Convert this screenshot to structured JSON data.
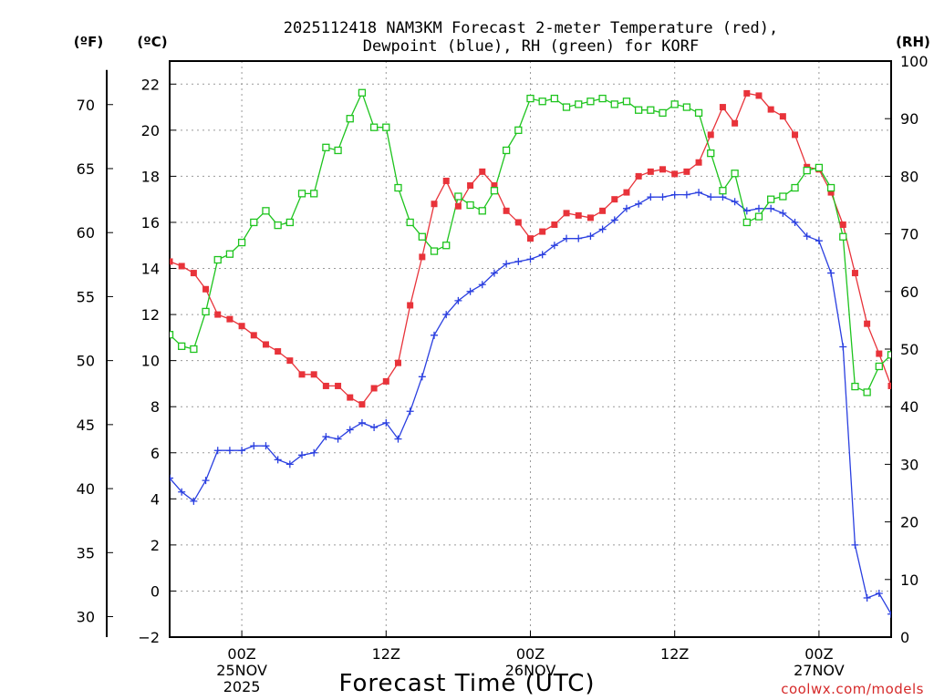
{
  "chart_data": {
    "type": "line",
    "title_lines": [
      "2025112418 NAM3KM Forecast 2-meter Temperature (red),",
      "Dewpoint (blue), RH (green) for KORF"
    ],
    "xlabel": "Forecast Time (UTC)",
    "credit": "coolwx.com/models",
    "units": {
      "left_f": "(ºF)",
      "left_c": "(ºC)",
      "right_rh": "(RH)"
    },
    "x_range_hours": [
      0,
      60
    ],
    "x_ticks": [
      {
        "hour": 6,
        "lines": [
          "00Z",
          "25NOV",
          "2025"
        ]
      },
      {
        "hour": 18,
        "lines": [
          "12Z"
        ]
      },
      {
        "hour": 30,
        "lines": [
          "00Z",
          "26NOV"
        ]
      },
      {
        "hour": 42,
        "lines": [
          "12Z"
        ]
      },
      {
        "hour": 54,
        "lines": [
          "00Z",
          "27NOV"
        ]
      }
    ],
    "y_celsius": {
      "min": -2,
      "max": 23,
      "ticks": [
        -2,
        0,
        2,
        4,
        6,
        8,
        10,
        12,
        14,
        16,
        18,
        20,
        22
      ]
    },
    "y_fahrenheit": {
      "ticks": [
        30,
        35,
        40,
        45,
        50,
        55,
        60,
        65,
        70
      ]
    },
    "y_rh": {
      "min": 0,
      "max": 100,
      "ticks": [
        0,
        10,
        20,
        30,
        40,
        50,
        60,
        70,
        80,
        90,
        100
      ]
    },
    "series": [
      {
        "name": "2-meter Temperature",
        "color": "#e8333a",
        "marker": "filled-square",
        "units": "C",
        "x": [
          0,
          1,
          2,
          3,
          4,
          5,
          6,
          7,
          8,
          9,
          10,
          11,
          12,
          13,
          14,
          15,
          16,
          17,
          18,
          19,
          20,
          21,
          22,
          23,
          24,
          25,
          26,
          27,
          28,
          29,
          30,
          31,
          32,
          33,
          34,
          35,
          36,
          37,
          38,
          39,
          40,
          41,
          42,
          43,
          44,
          45,
          46,
          47,
          48,
          49,
          50,
          51,
          52,
          53,
          54,
          55,
          56,
          57,
          58,
          59,
          60
        ],
        "values": [
          14.3,
          14.1,
          13.8,
          13.1,
          12.0,
          11.8,
          11.5,
          11.1,
          10.7,
          10.4,
          10.0,
          9.4,
          9.4,
          8.9,
          8.9,
          8.4,
          8.1,
          8.8,
          9.1,
          9.9,
          12.4,
          14.5,
          16.8,
          17.8,
          16.7,
          17.6,
          18.2,
          17.6,
          16.5,
          16.0,
          15.3,
          15.6,
          15.9,
          16.4,
          16.3,
          16.2,
          16.5,
          17.0,
          17.3,
          18.0,
          18.2,
          18.3,
          18.1,
          18.2,
          18.6,
          19.8,
          21.0,
          20.3,
          21.6,
          21.5,
          20.9,
          20.6,
          19.8,
          18.4,
          18.3,
          17.3,
          15.9,
          13.8,
          11.6,
          10.3,
          8.9
        ]
      },
      {
        "name": "Dewpoint",
        "color": "#2a3fe0",
        "marker": "plus",
        "units": "C",
        "x": [
          0,
          1,
          2,
          3,
          4,
          5,
          6,
          7,
          8,
          9,
          10,
          11,
          12,
          13,
          14,
          15,
          16,
          17,
          18,
          19,
          20,
          21,
          22,
          23,
          24,
          25,
          26,
          27,
          28,
          29,
          30,
          31,
          32,
          33,
          34,
          35,
          36,
          37,
          38,
          39,
          40,
          41,
          42,
          43,
          44,
          45,
          46,
          47,
          48,
          49,
          50,
          51,
          52,
          53,
          54,
          55,
          56,
          57,
          58,
          59,
          60
        ],
        "values": [
          4.9,
          4.3,
          3.9,
          4.8,
          6.1,
          6.1,
          6.1,
          6.3,
          6.3,
          5.7,
          5.5,
          5.9,
          6.0,
          6.7,
          6.6,
          7.0,
          7.3,
          7.1,
          7.3,
          6.6,
          7.8,
          9.3,
          11.1,
          12.0,
          12.6,
          13.0,
          13.3,
          13.8,
          14.2,
          14.3,
          14.4,
          14.6,
          15.0,
          15.3,
          15.3,
          15.4,
          15.7,
          16.1,
          16.6,
          16.8,
          17.1,
          17.1,
          17.2,
          17.2,
          17.3,
          17.1,
          17.1,
          16.9,
          16.5,
          16.6,
          16.6,
          16.4,
          16.0,
          15.4,
          15.2,
          13.8,
          10.6,
          2.0,
          -0.3,
          -0.1,
          -1.0
        ]
      },
      {
        "name": "RH",
        "color": "#1ec41e",
        "marker": "open-square",
        "units": "%",
        "x": [
          0,
          1,
          2,
          3,
          4,
          5,
          6,
          7,
          8,
          9,
          10,
          11,
          12,
          13,
          14,
          15,
          16,
          17,
          18,
          19,
          20,
          21,
          22,
          23,
          24,
          25,
          26,
          27,
          28,
          29,
          30,
          31,
          32,
          33,
          34,
          35,
          36,
          37,
          38,
          39,
          40,
          41,
          42,
          43,
          44,
          45,
          46,
          47,
          48,
          49,
          50,
          51,
          52,
          53,
          54,
          55,
          56,
          57,
          58,
          59,
          60
        ],
        "values": [
          52.5,
          50.5,
          50.0,
          56.5,
          65.5,
          66.5,
          68.5,
          72.0,
          74.0,
          71.5,
          72.0,
          77.0,
          77.0,
          85.0,
          84.5,
          90.0,
          94.5,
          88.5,
          88.5,
          78.0,
          72.0,
          69.5,
          67.0,
          68.0,
          76.5,
          75.0,
          74.0,
          77.5,
          84.5,
          88.0,
          93.5,
          93.0,
          93.5,
          92.0,
          92.5,
          93.0,
          93.5,
          92.5,
          93.0,
          91.5,
          91.5,
          91.0,
          92.5,
          92.0,
          91.0,
          84.0,
          77.5,
          80.5,
          72.0,
          73.0,
          76.0,
          76.5,
          78.0,
          81.0,
          81.5,
          78.0,
          69.5,
          43.5,
          42.5,
          47.0,
          49.0
        ]
      }
    ]
  }
}
